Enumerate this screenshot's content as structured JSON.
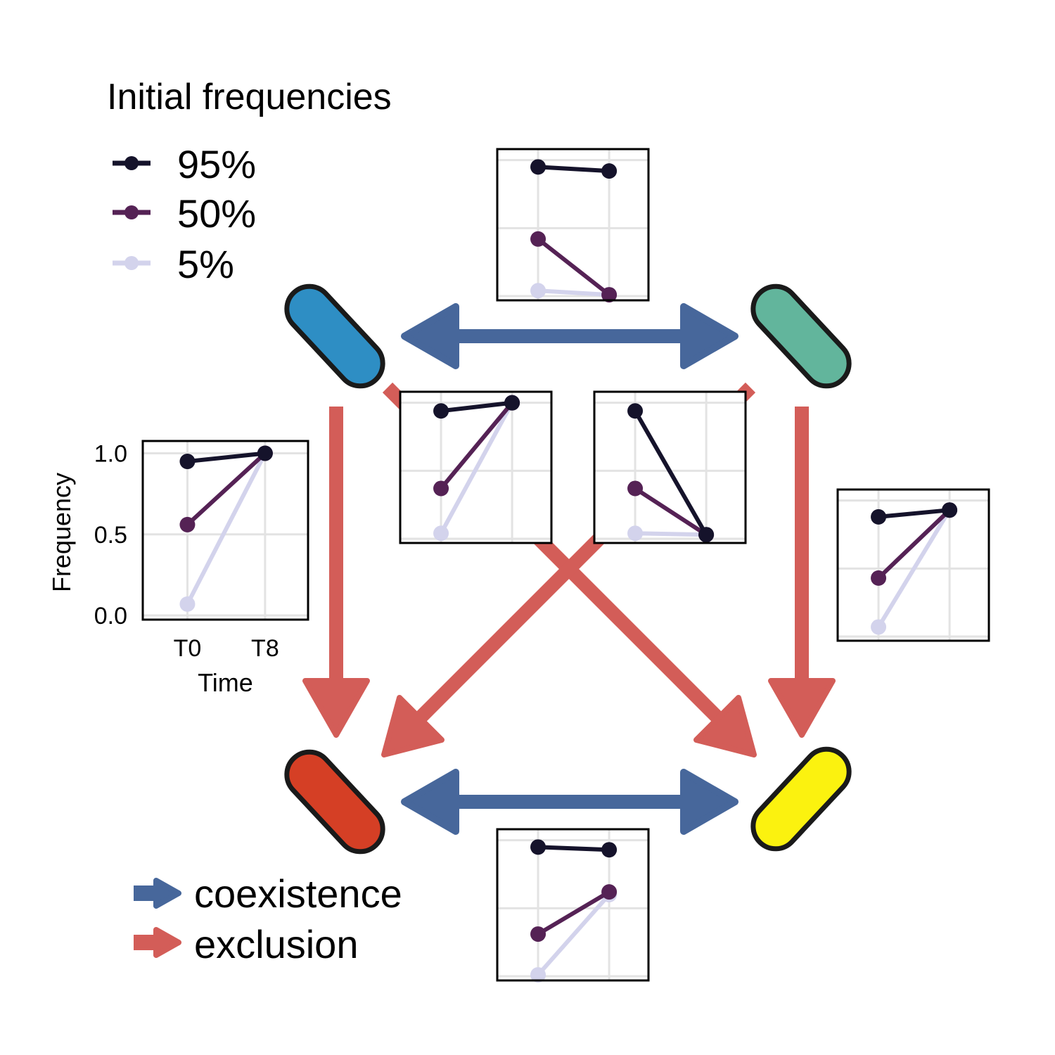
{
  "legend": {
    "title": "Initial frequencies",
    "items": [
      {
        "label": "95%",
        "color": "#15132b"
      },
      {
        "label": "50%",
        "color": "#552255"
      },
      {
        "label": "5%",
        "color": "#d3d3ec"
      }
    ]
  },
  "interaction_legend": {
    "items": [
      {
        "label": "coexistence",
        "color": "#47679b"
      },
      {
        "label": "exclusion",
        "color": "#d35d58"
      }
    ]
  },
  "strains": [
    {
      "id": "blue",
      "color": "#2e8ec4"
    },
    {
      "id": "green",
      "color": "#62b59c"
    },
    {
      "id": "red",
      "color": "#d53f25"
    },
    {
      "id": "yellow",
      "color": "#fbf20f"
    }
  ],
  "interactions": [
    {
      "from": "blue",
      "to": "green",
      "type": "coexistence"
    },
    {
      "from": "red",
      "to": "yellow",
      "type": "coexistence"
    },
    {
      "from": "blue",
      "to": "red",
      "type": "exclusion"
    },
    {
      "from": "green",
      "to": "yellow",
      "type": "exclusion"
    },
    {
      "from": "blue",
      "to": "yellow",
      "type": "exclusion"
    },
    {
      "from": "green",
      "to": "red",
      "type": "exclusion"
    }
  ],
  "axes": {
    "xlabel": "Time",
    "ylabel": "Frequency",
    "xticks": [
      "T0",
      "T8"
    ],
    "yticks": [
      "0.0",
      "0.5",
      "1.0"
    ]
  },
  "chart_data": [
    {
      "type": "line",
      "pair": "blue-red",
      "x": [
        "T0",
        "T8"
      ],
      "ylim": [
        0,
        1.05
      ],
      "show_axes": true,
      "series": [
        {
          "name": "95%",
          "values": [
            0.95,
            1.0
          ]
        },
        {
          "name": "50%",
          "values": [
            0.56,
            1.0
          ]
        },
        {
          "name": "5%",
          "values": [
            0.07,
            1.0
          ]
        }
      ]
    },
    {
      "type": "line",
      "pair": "blue-green",
      "x": [
        "T0",
        "T8"
      ],
      "ylim": [
        0,
        1.05
      ],
      "show_axes": false,
      "series": [
        {
          "name": "95%",
          "values": [
            0.95,
            0.92
          ]
        },
        {
          "name": "50%",
          "values": [
            0.42,
            0.01
          ]
        },
        {
          "name": "5%",
          "values": [
            0.04,
            0.01
          ]
        }
      ]
    },
    {
      "type": "line",
      "pair": "blue-yellow",
      "x": [
        "T0",
        "T8"
      ],
      "ylim": [
        0,
        1.05
      ],
      "show_axes": false,
      "series": [
        {
          "name": "95%",
          "values": [
            0.94,
            1.0
          ]
        },
        {
          "name": "50%",
          "values": [
            0.37,
            1.0
          ]
        },
        {
          "name": "5%",
          "values": [
            0.04,
            1.0
          ]
        }
      ]
    },
    {
      "type": "line",
      "pair": "green-red",
      "x": [
        "T0",
        "T8"
      ],
      "ylim": [
        0,
        1.05
      ],
      "show_axes": false,
      "series": [
        {
          "name": "95%",
          "values": [
            0.94,
            0.03
          ]
        },
        {
          "name": "50%",
          "values": [
            0.37,
            0.03
          ]
        },
        {
          "name": "5%",
          "values": [
            0.04,
            0.03
          ]
        }
      ]
    },
    {
      "type": "line",
      "pair": "green-yellow",
      "x": [
        "T0",
        "T8"
      ],
      "ylim": [
        0,
        1.05
      ],
      "show_axes": false,
      "series": [
        {
          "name": "95%",
          "values": [
            0.88,
            0.93
          ]
        },
        {
          "name": "50%",
          "values": [
            0.43,
            0.93
          ]
        },
        {
          "name": "5%",
          "values": [
            0.07,
            0.93
          ]
        }
      ]
    },
    {
      "type": "line",
      "pair": "red-yellow",
      "x": [
        "T0",
        "T8"
      ],
      "ylim": [
        0,
        1.05
      ],
      "show_axes": false,
      "series": [
        {
          "name": "95%",
          "values": [
            0.95,
            0.93
          ]
        },
        {
          "name": "50%",
          "values": [
            0.31,
            0.62
          ]
        },
        {
          "name": "5%",
          "values": [
            0.01,
            0.6
          ]
        }
      ]
    }
  ]
}
